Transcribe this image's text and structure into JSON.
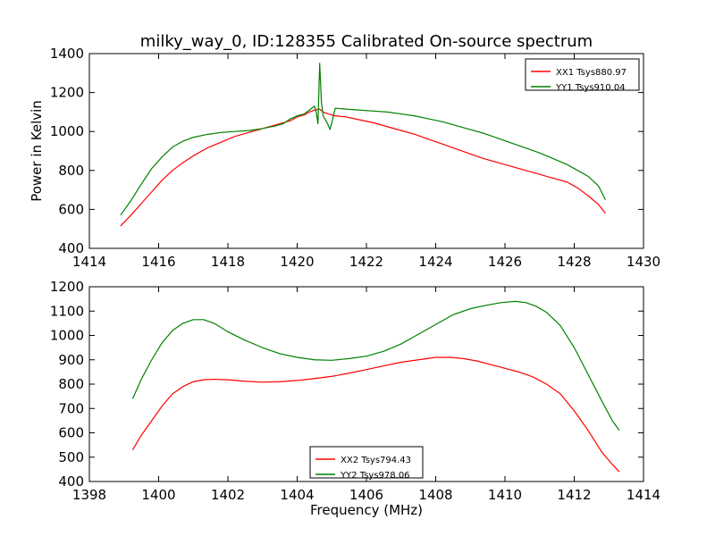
{
  "title": "milky_way_0, ID:128355 Calibrated On-source spectrum",
  "xlabel": "Frequency (MHz)",
  "ylabel": "Power in Kelvin",
  "chart_data": [
    {
      "type": "line",
      "title": "milky_way_0, ID:128355 Calibrated On-source spectrum",
      "xlabel": "",
      "ylabel": "Power in Kelvin",
      "xlim": [
        1414,
        1430
      ],
      "ylim": [
        400,
        1400
      ],
      "xticks": [
        "1414",
        "1416",
        "1418",
        "1420",
        "1422",
        "1424",
        "1426",
        "1428",
        "1430"
      ],
      "yticks": [
        "400",
        "600",
        "800",
        "1000",
        "1200",
        "1400"
      ],
      "grid": false,
      "legend": "top-right",
      "series": [
        {
          "name": "XX1 Tsys880.97",
          "color": "#ff0000",
          "x": [
            1414.9,
            1415.2,
            1415.5,
            1415.8,
            1416.1,
            1416.4,
            1416.7,
            1417.0,
            1417.4,
            1417.8,
            1418.2,
            1418.6,
            1419.0,
            1419.4,
            1419.8,
            1420.0,
            1420.2,
            1420.35,
            1420.5,
            1420.65,
            1420.75,
            1420.9,
            1421.1,
            1421.4,
            1421.8,
            1422.2,
            1422.6,
            1423.0,
            1423.4,
            1423.8,
            1424.2,
            1424.6,
            1425.0,
            1425.4,
            1425.8,
            1426.2,
            1426.6,
            1427.0,
            1427.4,
            1427.8,
            1428.1,
            1428.4,
            1428.7,
            1428.9
          ],
          "y": [
            515,
            570,
            630,
            690,
            750,
            800,
            840,
            875,
            915,
            945,
            975,
            995,
            1015,
            1035,
            1055,
            1075,
            1085,
            1100,
            1110,
            1115,
            1100,
            1090,
            1080,
            1075,
            1060,
            1045,
            1025,
            1005,
            985,
            960,
            935,
            910,
            885,
            860,
            840,
            820,
            800,
            780,
            760,
            740,
            710,
            670,
            625,
            580
          ]
        },
        {
          "name": "YY1 Tsys910.04",
          "color": "#008000",
          "x": [
            1414.9,
            1415.2,
            1415.5,
            1415.8,
            1416.1,
            1416.4,
            1416.7,
            1417.0,
            1417.4,
            1417.8,
            1418.2,
            1418.6,
            1419.0,
            1419.4,
            1419.6,
            1419.8,
            1420.0,
            1420.2,
            1420.35,
            1420.5,
            1420.55,
            1420.6,
            1420.65,
            1420.7,
            1420.75,
            1420.85,
            1420.95,
            1421.1,
            1421.4,
            1421.8,
            1422.2,
            1422.6,
            1423.0,
            1423.4,
            1423.8,
            1424.2,
            1424.6,
            1425.0,
            1425.4,
            1425.8,
            1426.2,
            1426.6,
            1427.0,
            1427.4,
            1427.8,
            1428.1,
            1428.4,
            1428.7,
            1428.9
          ],
          "y": [
            570,
            645,
            730,
            810,
            870,
            920,
            950,
            970,
            985,
            995,
            1000,
            1005,
            1015,
            1030,
            1040,
            1065,
            1080,
            1090,
            1110,
            1130,
            1100,
            1040,
            1350,
            1150,
            1080,
            1050,
            1010,
            1120,
            1115,
            1110,
            1105,
            1100,
            1090,
            1080,
            1065,
            1050,
            1030,
            1010,
            990,
            965,
            940,
            915,
            890,
            860,
            830,
            800,
            770,
            720,
            650
          ]
        }
      ]
    },
    {
      "type": "line",
      "title": "",
      "xlabel": "Frequency (MHz)",
      "ylabel": "",
      "xlim": [
        1398,
        1414
      ],
      "ylim": [
        400,
        1200
      ],
      "xticks": [
        "1398",
        "1400",
        "1402",
        "1404",
        "1406",
        "1408",
        "1410",
        "1412",
        "1414"
      ],
      "yticks": [
        "400",
        "500",
        "600",
        "700",
        "800",
        "900",
        "1000",
        "1100",
        "1200"
      ],
      "grid": false,
      "legend": "bottom-center",
      "series": [
        {
          "name": "XX2 Tsys794.43",
          "color": "#ff0000",
          "x": [
            1399.25,
            1399.5,
            1399.8,
            1400.1,
            1400.4,
            1400.7,
            1401.0,
            1401.3,
            1401.6,
            1402.0,
            1402.5,
            1403.0,
            1403.5,
            1404.0,
            1404.5,
            1405.0,
            1405.5,
            1406.0,
            1406.5,
            1407.0,
            1407.5,
            1408.0,
            1408.4,
            1408.8,
            1409.2,
            1409.6,
            1410.0,
            1410.4,
            1410.8,
            1411.2,
            1411.6,
            1412.0,
            1412.4,
            1412.8,
            1413.1,
            1413.3
          ],
          "y": [
            530,
            590,
            650,
            710,
            760,
            790,
            810,
            818,
            820,
            818,
            812,
            808,
            810,
            815,
            823,
            832,
            845,
            860,
            875,
            890,
            900,
            910,
            910,
            905,
            895,
            880,
            865,
            850,
            830,
            800,
            760,
            690,
            610,
            520,
            470,
            440
          ]
        },
        {
          "name": "YY2 Tsys978.06",
          "color": "#008000",
          "x": [
            1399.25,
            1399.5,
            1399.8,
            1400.1,
            1400.4,
            1400.7,
            1401.0,
            1401.3,
            1401.6,
            1402.0,
            1402.5,
            1403.0,
            1403.5,
            1404.0,
            1404.5,
            1405.0,
            1405.5,
            1406.0,
            1406.5,
            1407.0,
            1407.5,
            1408.0,
            1408.5,
            1409.0,
            1409.5,
            1409.9,
            1410.3,
            1410.6,
            1410.9,
            1411.2,
            1411.6,
            1412.0,
            1412.4,
            1412.8,
            1413.1,
            1413.3
          ],
          "y": [
            740,
            820,
            900,
            970,
            1020,
            1050,
            1065,
            1065,
            1050,
            1015,
            980,
            950,
            925,
            910,
            900,
            898,
            905,
            915,
            935,
            965,
            1005,
            1045,
            1085,
            1110,
            1125,
            1135,
            1140,
            1135,
            1120,
            1095,
            1040,
            950,
            840,
            730,
            650,
            610
          ]
        }
      ]
    }
  ]
}
